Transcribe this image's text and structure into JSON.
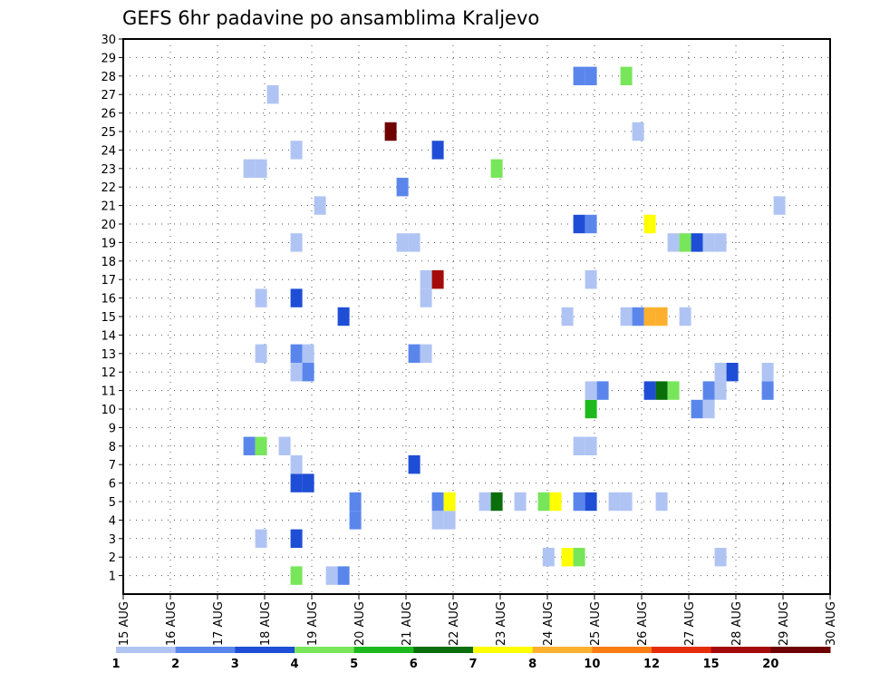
{
  "chart_data": {
    "type": "heatmap",
    "title": "GEFS 6hr padavine po ansamblima Kraljevo",
    "xlabel": "",
    "ylabel": "",
    "x_unit": "days since 15 AUG 00Z (6-hour steps)",
    "xlim": [
      0,
      15
    ],
    "ylim": [
      0,
      30
    ],
    "y_ticks": [
      1,
      2,
      3,
      4,
      5,
      6,
      7,
      8,
      9,
      10,
      11,
      12,
      13,
      14,
      15,
      16,
      17,
      18,
      19,
      20,
      21,
      22,
      23,
      24,
      25,
      26,
      27,
      28,
      29,
      30
    ],
    "x_tick_labels": [
      "15 AUG",
      "16 AUG",
      "17 AUG",
      "18 AUG",
      "19 AUG",
      "20 AUG",
      "21 AUG",
      "22 AUG",
      "23 AUG",
      "24 AUG",
      "25 AUG",
      "26 AUG",
      "27 AUG",
      "28 AUG",
      "29 AUG",
      "30 AUG"
    ],
    "grid": true,
    "colorbar": {
      "position": "bottom",
      "levels": [
        "1",
        "2",
        "3",
        "4",
        "5",
        "6",
        "7",
        "8",
        "10",
        "12",
        "15",
        "20"
      ],
      "colors": [
        "#b0c4f4",
        "#5a86ec",
        "#1f4ed6",
        "#78e65a",
        "#1eb91e",
        "#0a6e0a",
        "#ffff00",
        "#fdb02e",
        "#fa7d14",
        "#e62d0a",
        "#a50a0a",
        "#6e0000"
      ]
    },
    "cells": [
      {
        "x": 3.55,
        "m": 1,
        "c": "#78e65a"
      },
      {
        "x": 4.3,
        "m": 1,
        "c": "#b0c4f4"
      },
      {
        "x": 4.55,
        "m": 1,
        "c": "#5a86ec"
      },
      {
        "x": 8.9,
        "m": 2,
        "c": "#b0c4f4"
      },
      {
        "x": 9.3,
        "m": 2,
        "c": "#ffff00"
      },
      {
        "x": 9.55,
        "m": 2,
        "c": "#78e65a"
      },
      {
        "x": 12.55,
        "m": 2,
        "c": "#b0c4f4"
      },
      {
        "x": 2.8,
        "m": 3,
        "c": "#b0c4f4"
      },
      {
        "x": 3.55,
        "m": 3,
        "c": "#1f4ed6"
      },
      {
        "x": 4.8,
        "m": 4,
        "c": "#5a86ec"
      },
      {
        "x": 6.55,
        "m": 4,
        "c": "#b0c4f4"
      },
      {
        "x": 6.8,
        "m": 4,
        "c": "#b0c4f4"
      },
      {
        "x": 4.8,
        "m": 5,
        "c": "#5a86ec"
      },
      {
        "x": 6.55,
        "m": 5,
        "c": "#5a86ec"
      },
      {
        "x": 6.8,
        "m": 5,
        "c": "#ffff00"
      },
      {
        "x": 7.55,
        "m": 5,
        "c": "#b0c4f4"
      },
      {
        "x": 7.8,
        "m": 5,
        "c": "#0a6e0a"
      },
      {
        "x": 8.3,
        "m": 5,
        "c": "#b0c4f4"
      },
      {
        "x": 8.8,
        "m": 5,
        "c": "#78e65a"
      },
      {
        "x": 9.05,
        "m": 5,
        "c": "#ffff00"
      },
      {
        "x": 9.55,
        "m": 5,
        "c": "#5a86ec"
      },
      {
        "x": 9.8,
        "m": 5,
        "c": "#1f4ed6"
      },
      {
        "x": 10.3,
        "m": 5,
        "c": "#b0c4f4"
      },
      {
        "x": 10.55,
        "m": 5,
        "c": "#b0c4f4"
      },
      {
        "x": 11.3,
        "m": 5,
        "c": "#b0c4f4"
      },
      {
        "x": 3.55,
        "m": 6,
        "c": "#1f4ed6"
      },
      {
        "x": 3.8,
        "m": 6,
        "c": "#1f4ed6"
      },
      {
        "x": 3.55,
        "m": 7,
        "c": "#b0c4f4"
      },
      {
        "x": 6.05,
        "m": 7,
        "c": "#1f4ed6"
      },
      {
        "x": 2.55,
        "m": 8,
        "c": "#5a86ec"
      },
      {
        "x": 2.8,
        "m": 8,
        "c": "#78e65a"
      },
      {
        "x": 3.3,
        "m": 8,
        "c": "#b0c4f4"
      },
      {
        "x": 9.55,
        "m": 8,
        "c": "#b0c4f4"
      },
      {
        "x": 9.8,
        "m": 8,
        "c": "#b0c4f4"
      },
      {
        "x": 9.8,
        "m": 10,
        "c": "#1eb91e"
      },
      {
        "x": 12.05,
        "m": 10,
        "c": "#5a86ec"
      },
      {
        "x": 12.3,
        "m": 10,
        "c": "#b0c4f4"
      },
      {
        "x": 9.8,
        "m": 11,
        "c": "#b0c4f4"
      },
      {
        "x": 10.05,
        "m": 11,
        "c": "#5a86ec"
      },
      {
        "x": 11.05,
        "m": 11,
        "c": "#1f4ed6"
      },
      {
        "x": 11.3,
        "m": 11,
        "c": "#0a6e0a"
      },
      {
        "x": 11.55,
        "m": 11,
        "c": "#78e65a"
      },
      {
        "x": 12.3,
        "m": 11,
        "c": "#5a86ec"
      },
      {
        "x": 12.55,
        "m": 11,
        "c": "#b0c4f4"
      },
      {
        "x": 13.55,
        "m": 11,
        "c": "#5a86ec"
      },
      {
        "x": 3.55,
        "m": 12,
        "c": "#b0c4f4"
      },
      {
        "x": 3.8,
        "m": 12,
        "c": "#5a86ec"
      },
      {
        "x": 12.55,
        "m": 12,
        "c": "#b0c4f4"
      },
      {
        "x": 12.8,
        "m": 12,
        "c": "#1f4ed6"
      },
      {
        "x": 13.55,
        "m": 12,
        "c": "#b0c4f4"
      },
      {
        "x": 2.8,
        "m": 13,
        "c": "#b0c4f4"
      },
      {
        "x": 3.55,
        "m": 13,
        "c": "#5a86ec"
      },
      {
        "x": 3.8,
        "m": 13,
        "c": "#b0c4f4"
      },
      {
        "x": 6.05,
        "m": 13,
        "c": "#5a86ec"
      },
      {
        "x": 6.3,
        "m": 13,
        "c": "#b0c4f4"
      },
      {
        "x": 4.55,
        "m": 15,
        "c": "#1f4ed6"
      },
      {
        "x": 9.3,
        "m": 15,
        "c": "#b0c4f4"
      },
      {
        "x": 10.55,
        "m": 15,
        "c": "#b0c4f4"
      },
      {
        "x": 10.8,
        "m": 15,
        "c": "#5a86ec"
      },
      {
        "x": 11.05,
        "m": 15,
        "c": "#fdb02e"
      },
      {
        "x": 11.3,
        "m": 15,
        "c": "#fdb02e"
      },
      {
        "x": 11.8,
        "m": 15,
        "c": "#b0c4f4"
      },
      {
        "x": 2.8,
        "m": 16,
        "c": "#b0c4f4"
      },
      {
        "x": 3.55,
        "m": 16,
        "c": "#1f4ed6"
      },
      {
        "x": 6.3,
        "m": 16,
        "c": "#b0c4f4"
      },
      {
        "x": 6.3,
        "m": 17,
        "c": "#b0c4f4"
      },
      {
        "x": 6.55,
        "m": 17,
        "c": "#a50a0a"
      },
      {
        "x": 9.8,
        "m": 17,
        "c": "#b0c4f4"
      },
      {
        "x": 3.55,
        "m": 19,
        "c": "#b0c4f4"
      },
      {
        "x": 5.8,
        "m": 19,
        "c": "#b0c4f4"
      },
      {
        "x": 6.05,
        "m": 19,
        "c": "#b0c4f4"
      },
      {
        "x": 11.55,
        "m": 19,
        "c": "#b0c4f4"
      },
      {
        "x": 11.8,
        "m": 19,
        "c": "#78e65a"
      },
      {
        "x": 12.05,
        "m": 19,
        "c": "#1f4ed6"
      },
      {
        "x": 12.3,
        "m": 19,
        "c": "#b0c4f4"
      },
      {
        "x": 12.55,
        "m": 19,
        "c": "#b0c4f4"
      },
      {
        "x": 9.55,
        "m": 20,
        "c": "#1f4ed6"
      },
      {
        "x": 9.8,
        "m": 20,
        "c": "#5a86ec"
      },
      {
        "x": 11.05,
        "m": 20,
        "c": "#ffff00"
      },
      {
        "x": 4.05,
        "m": 21,
        "c": "#b0c4f4"
      },
      {
        "x": 13.8,
        "m": 21,
        "c": "#b0c4f4"
      },
      {
        "x": 5.8,
        "m": 22,
        "c": "#5a86ec"
      },
      {
        "x": 2.55,
        "m": 23,
        "c": "#b0c4f4"
      },
      {
        "x": 2.8,
        "m": 23,
        "c": "#b0c4f4"
      },
      {
        "x": 7.8,
        "m": 23,
        "c": "#78e65a"
      },
      {
        "x": 3.55,
        "m": 24,
        "c": "#b0c4f4"
      },
      {
        "x": 6.55,
        "m": 24,
        "c": "#1f4ed6"
      },
      {
        "x": 5.55,
        "m": 25,
        "c": "#6e0000"
      },
      {
        "x": 10.8,
        "m": 25,
        "c": "#b0c4f4"
      },
      {
        "x": 3.05,
        "m": 27,
        "c": "#b0c4f4"
      },
      {
        "x": 9.55,
        "m": 28,
        "c": "#5a86ec"
      },
      {
        "x": 9.8,
        "m": 28,
        "c": "#5a86ec"
      },
      {
        "x": 10.55,
        "m": 28,
        "c": "#78e65a"
      }
    ]
  }
}
